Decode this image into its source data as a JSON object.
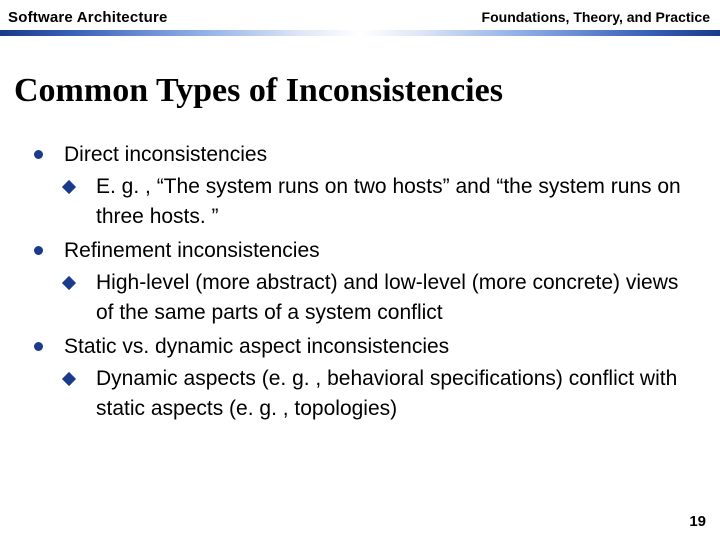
{
  "header": {
    "left": "Software Architecture",
    "right": "Foundations, Theory, and Practice"
  },
  "title": "Common Types of Inconsistencies",
  "colors": {
    "bullet": "#1a3a8a",
    "text": "#000000",
    "background": "#ffffff"
  },
  "typography": {
    "title_family": "Georgia, serif",
    "title_size_pt": 26,
    "title_weight": "bold",
    "body_family": "Verdana, sans-serif",
    "body_size_pt": 16,
    "header_size_pt": 11
  },
  "bullets": [
    {
      "text": "Direct inconsistencies",
      "sub": [
        {
          "text": "E. g. , “The system runs on two hosts” and “the system runs on three hosts. ”"
        }
      ]
    },
    {
      "text": "Refinement inconsistencies",
      "sub": [
        {
          "text": "High-level (more abstract) and low-level (more concrete) views of the same parts of a system conflict"
        }
      ]
    },
    {
      "text": "Static vs. dynamic aspect inconsistencies",
      "sub": [
        {
          "text": "Dynamic aspects (e. g. , behavioral specifications) conflict with static aspects (e. g. , topologies)"
        }
      ]
    }
  ],
  "page_number": "19"
}
